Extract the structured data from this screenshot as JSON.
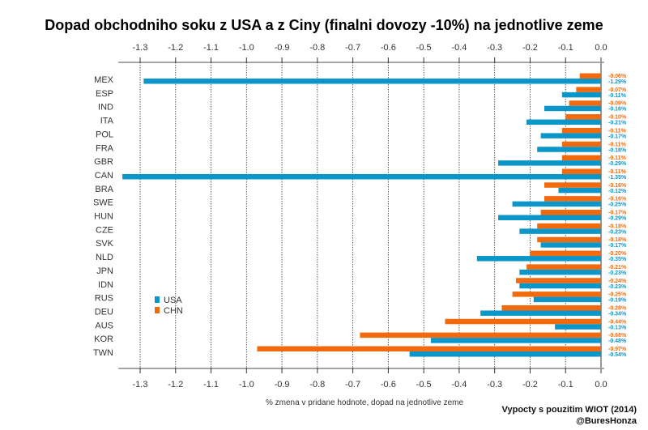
{
  "chart_data": {
    "type": "bar",
    "orientation": "horizontal",
    "title": "Dopad obchodniho soku z USA a z Ciny (finalni dovozy -10%) na jednotlive zeme",
    "xlabel": "% zmena v pridane hodnote, dopad na jednotlive zeme",
    "ylabel": "",
    "credit_lines": [
      "Vypocty s pouzitim WIOT (2014)",
      "@BuresHonza"
    ],
    "xlim": [
      -1.35,
      0.0
    ],
    "x_ticks": [
      -1.3,
      -1.2,
      -1.1,
      -1.0,
      -0.9,
      -0.8,
      -0.7,
      -0.6,
      -0.5,
      -0.4,
      -0.3,
      -0.2,
      -0.1,
      0.0
    ],
    "x_tick_labels": [
      "-1.3",
      "-1.2",
      "-1.1",
      "-1.0",
      "-0.9",
      "-0.8",
      "-0.7",
      "-0.6",
      "-0.5",
      "-0.4",
      "-0.3",
      "-0.2",
      "-0.1",
      "0.0"
    ],
    "grid": "vertical dotted",
    "legend_position": "bottom-left",
    "categories": [
      "MEX",
      "ESP",
      "IND",
      "ITA",
      "POL",
      "FRA",
      "GBR",
      "CAN",
      "BRA",
      "SWE",
      "HUN",
      "CZE",
      "SVK",
      "NLD",
      "JPN",
      "IDN",
      "RUS",
      "DEU",
      "AUS",
      "KOR",
      "TWN"
    ],
    "series": [
      {
        "name": "USA",
        "color": "#0a96c8",
        "values": [
          -1.29,
          -0.11,
          -0.16,
          -0.21,
          -0.17,
          -0.18,
          -0.29,
          -1.35,
          -0.12,
          -0.25,
          -0.29,
          -0.23,
          -0.17,
          -0.35,
          -0.23,
          -0.23,
          -0.19,
          -0.34,
          -0.13,
          -0.48,
          -0.54
        ],
        "labels": [
          "-1.29%",
          "-0.11%",
          "-0.16%",
          "-0.21%",
          "-0.17%",
          "-0.18%",
          "-0.29%",
          "-1.35%",
          "-0.12%",
          "-0.25%",
          "-0.29%",
          "-0.23%",
          "-0.17%",
          "-0.35%",
          "-0.23%",
          "-0.23%",
          "-0.19%",
          "-0.34%",
          "-0.13%",
          "-0.48%",
          "-0.54%"
        ]
      },
      {
        "name": "CHN",
        "color": "#f26a0c",
        "values": [
          -0.06,
          -0.07,
          -0.09,
          -0.1,
          -0.11,
          -0.11,
          -0.11,
          -0.11,
          -0.16,
          -0.16,
          -0.17,
          -0.18,
          -0.18,
          -0.2,
          -0.21,
          -0.24,
          -0.25,
          -0.28,
          -0.44,
          -0.68,
          -0.97
        ],
        "labels": [
          "-0.06%",
          "-0.07%",
          "-0.09%",
          "-0.10%",
          "-0.11%",
          "-0.11%",
          "-0.11%",
          "-0.11%",
          "-0.16%",
          "-0.16%",
          "-0.17%",
          "-0.18%",
          "-0.18%",
          "-0.20%",
          "-0.21%",
          "-0.24%",
          "-0.25%",
          "-0.28%",
          "-0.44%",
          "-0.68%",
          "-0.97%"
        ]
      }
    ]
  }
}
